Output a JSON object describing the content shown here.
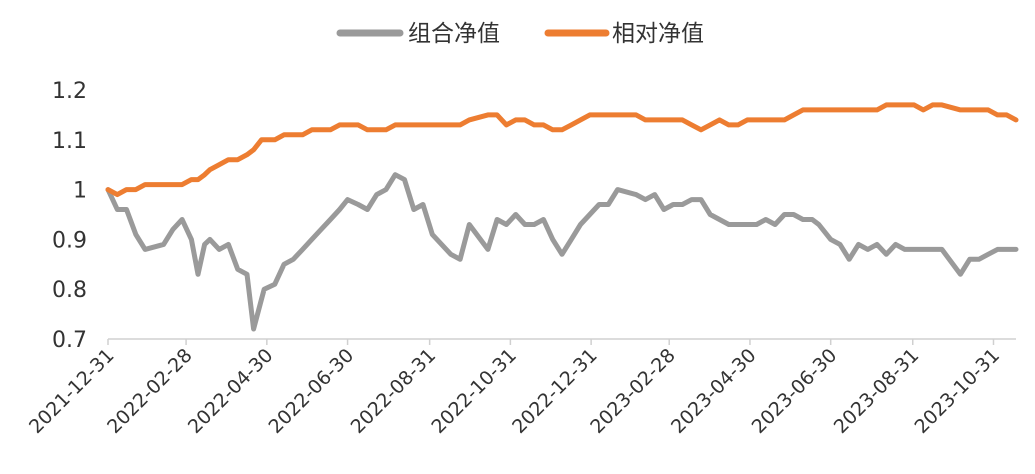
{
  "chart_data": {
    "type": "line",
    "title": "",
    "xlabel": "",
    "ylabel": "",
    "ylim": [
      0.7,
      1.2
    ],
    "yticks": [
      "0.7",
      "0.8",
      "0.9",
      "1",
      "1.1",
      "1.2"
    ],
    "xticks": [
      "2021-12-31",
      "2022-02-28",
      "2022-04-30",
      "2022-06-30",
      "2022-08-31",
      "2022-10-31",
      "2022-12-31",
      "2023-02-28",
      "2023-04-30",
      "2023-06-30",
      "2023-08-31",
      "2023-10-31"
    ],
    "grid": false,
    "legend_position": "top",
    "x": [
      "2021-12-31",
      "2022-01-07",
      "2022-01-14",
      "2022-01-21",
      "2022-01-28",
      "2022-02-11",
      "2022-02-18",
      "2022-02-25",
      "2022-03-04",
      "2022-03-09",
      "2022-03-14",
      "2022-03-18",
      "2022-03-25",
      "2022-04-01",
      "2022-04-08",
      "2022-04-15",
      "2022-04-20",
      "2022-04-26",
      "2022-04-28",
      "2022-05-06",
      "2022-05-13",
      "2022-05-20",
      "2022-05-27",
      "2022-06-03",
      "2022-06-10",
      "2022-06-17",
      "2022-06-24",
      "2022-06-30",
      "2022-07-08",
      "2022-07-15",
      "2022-07-22",
      "2022-07-29",
      "2022-08-05",
      "2022-08-12",
      "2022-08-19",
      "2022-08-26",
      "2022-09-02",
      "2022-09-09",
      "2022-09-16",
      "2022-09-23",
      "2022-09-30",
      "2022-10-14",
      "2022-10-21",
      "2022-10-28",
      "2022-11-04",
      "2022-11-11",
      "2022-11-18",
      "2022-11-25",
      "2022-12-02",
      "2022-12-09",
      "2022-12-16",
      "2022-12-23",
      "2022-12-30",
      "2023-01-06",
      "2023-01-13",
      "2023-01-20",
      "2023-02-03",
      "2023-02-10",
      "2023-02-17",
      "2023-02-24",
      "2023-03-03",
      "2023-03-10",
      "2023-03-17",
      "2023-03-24",
      "2023-03-31",
      "2023-04-07",
      "2023-04-14",
      "2023-04-21",
      "2023-04-28",
      "2023-05-05",
      "2023-05-12",
      "2023-05-19",
      "2023-05-26",
      "2023-06-02",
      "2023-06-09",
      "2023-06-16",
      "2023-06-21",
      "2023-06-30",
      "2023-07-07",
      "2023-07-14",
      "2023-07-21",
      "2023-07-28",
      "2023-08-04",
      "2023-08-11",
      "2023-08-18",
      "2023-08-25",
      "2023-09-01",
      "2023-09-08",
      "2023-09-15",
      "2023-09-22",
      "2023-10-06",
      "2023-10-13",
      "2023-10-20",
      "2023-10-27",
      "2023-11-03",
      "2023-11-10",
      "2023-11-17"
    ],
    "series": [
      {
        "name": "组合净值",
        "color": "#9a9a9a",
        "values": [
          1.0,
          0.96,
          0.96,
          0.91,
          0.88,
          0.89,
          0.92,
          0.94,
          0.9,
          0.83,
          0.89,
          0.9,
          0.88,
          0.89,
          0.84,
          0.83,
          0.72,
          0.78,
          0.8,
          0.81,
          0.85,
          0.86,
          0.88,
          0.9,
          0.92,
          0.94,
          0.96,
          0.98,
          0.97,
          0.96,
          0.99,
          1.0,
          1.03,
          1.02,
          0.96,
          0.97,
          0.91,
          0.89,
          0.87,
          0.86,
          0.93,
          0.88,
          0.94,
          0.93,
          0.95,
          0.93,
          0.93,
          0.94,
          0.9,
          0.87,
          0.9,
          0.93,
          0.95,
          0.97,
          0.97,
          1.0,
          0.99,
          0.98,
          0.99,
          0.96,
          0.97,
          0.97,
          0.98,
          0.98,
          0.95,
          0.94,
          0.93,
          0.93,
          0.93,
          0.93,
          0.94,
          0.93,
          0.95,
          0.95,
          0.94,
          0.94,
          0.93,
          0.9,
          0.89,
          0.86,
          0.89,
          0.88,
          0.89,
          0.87,
          0.89,
          0.88,
          0.88,
          0.88,
          0.88,
          0.88,
          0.83,
          0.86,
          0.86,
          0.87,
          0.88,
          0.88,
          0.88
        ]
      },
      {
        "name": "相对净值",
        "color": "#ed7d31",
        "values": [
          1.0,
          0.99,
          1.0,
          1.0,
          1.01,
          1.01,
          1.01,
          1.01,
          1.02,
          1.02,
          1.03,
          1.04,
          1.05,
          1.06,
          1.06,
          1.07,
          1.08,
          1.1,
          1.1,
          1.1,
          1.11,
          1.11,
          1.11,
          1.12,
          1.12,
          1.12,
          1.13,
          1.13,
          1.13,
          1.12,
          1.12,
          1.12,
          1.13,
          1.13,
          1.13,
          1.13,
          1.13,
          1.13,
          1.13,
          1.13,
          1.14,
          1.15,
          1.15,
          1.13,
          1.14,
          1.14,
          1.13,
          1.13,
          1.12,
          1.12,
          1.13,
          1.14,
          1.15,
          1.15,
          1.15,
          1.15,
          1.15,
          1.14,
          1.14,
          1.14,
          1.14,
          1.14,
          1.13,
          1.12,
          1.13,
          1.14,
          1.13,
          1.13,
          1.14,
          1.14,
          1.14,
          1.14,
          1.14,
          1.15,
          1.16,
          1.16,
          1.16,
          1.16,
          1.16,
          1.16,
          1.16,
          1.16,
          1.16,
          1.17,
          1.17,
          1.17,
          1.17,
          1.16,
          1.17,
          1.17,
          1.16,
          1.16,
          1.16,
          1.16,
          1.15,
          1.15,
          1.14
        ]
      }
    ]
  }
}
